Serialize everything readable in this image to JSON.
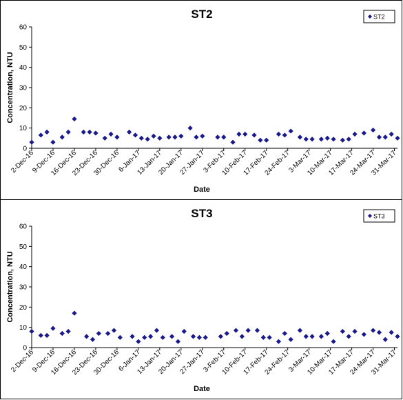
{
  "chart_data": [
    {
      "type": "scatter",
      "title": "ST2",
      "xlabel": "Date",
      "ylabel": "Concentration, NTU",
      "ylim": [
        0,
        60
      ],
      "yticks": [
        0,
        10,
        20,
        30,
        40,
        50,
        60
      ],
      "xlim": [
        "2016-12-02",
        "2017-04-01"
      ],
      "xtick_labels": [
        "2-Dec-16",
        "9-Dec-16",
        "16-Dec-16",
        "23-Dec-16",
        "30-Dec-16",
        "6-Jan-17",
        "13-Jan-17",
        "20-Jan-17",
        "27-Jan-17",
        "3-Feb-17",
        "10-Feb-17",
        "17-Feb-17",
        "24-Feb-17",
        "3-Mar-17",
        "10-Mar-17",
        "17-Mar-17",
        "24-Mar-17",
        "31-Mar-17"
      ],
      "grid": false,
      "legend_position": "top-right",
      "marker_color": "#1a1a8c",
      "series": [
        {
          "name": "ST2",
          "points": [
            [
              "2016-12-02",
              3.0
            ],
            [
              "2016-12-05",
              6.5
            ],
            [
              "2016-12-07",
              8.0
            ],
            [
              "2016-12-09",
              3.0
            ],
            [
              "2016-12-12",
              5.5
            ],
            [
              "2016-12-14",
              8.0
            ],
            [
              "2016-12-16",
              14.5
            ],
            [
              "2016-12-19",
              8.0
            ],
            [
              "2016-12-21",
              8.0
            ],
            [
              "2016-12-23",
              7.5
            ],
            [
              "2016-12-26",
              5.0
            ],
            [
              "2016-12-28",
              7.0
            ],
            [
              "2016-12-30",
              5.5
            ],
            [
              "2017-01-03",
              8.0
            ],
            [
              "2017-01-05",
              6.5
            ],
            [
              "2017-01-07",
              5.0
            ],
            [
              "2017-01-09",
              4.5
            ],
            [
              "2017-01-11",
              6.0
            ],
            [
              "2017-01-13",
              5.0
            ],
            [
              "2017-01-16",
              5.5
            ],
            [
              "2017-01-18",
              5.5
            ],
            [
              "2017-01-20",
              6.0
            ],
            [
              "2017-01-23",
              10.0
            ],
            [
              "2017-01-25",
              5.5
            ],
            [
              "2017-01-27",
              6.0
            ],
            [
              "2017-02-01",
              5.5
            ],
            [
              "2017-02-03",
              5.5
            ],
            [
              "2017-02-06",
              3.0
            ],
            [
              "2017-02-08",
              7.0
            ],
            [
              "2017-02-10",
              7.0
            ],
            [
              "2017-02-13",
              6.5
            ],
            [
              "2017-02-15",
              4.0
            ],
            [
              "2017-02-17",
              4.0
            ],
            [
              "2017-02-21",
              7.0
            ],
            [
              "2017-02-23",
              6.5
            ],
            [
              "2017-02-25",
              8.5
            ],
            [
              "2017-02-28",
              5.5
            ],
            [
              "2017-03-02",
              4.5
            ],
            [
              "2017-03-04",
              4.5
            ],
            [
              "2017-03-07",
              4.5
            ],
            [
              "2017-03-09",
              5.0
            ],
            [
              "2017-03-11",
              4.5
            ],
            [
              "2017-03-14",
              4.0
            ],
            [
              "2017-03-16",
              4.5
            ],
            [
              "2017-03-18",
              7.0
            ],
            [
              "2017-03-21",
              7.5
            ],
            [
              "2017-03-24",
              9.0
            ],
            [
              "2017-03-26",
              5.5
            ],
            [
              "2017-03-28",
              5.5
            ],
            [
              "2017-03-30",
              7.0
            ],
            [
              "2017-04-01",
              5.0
            ]
          ]
        }
      ]
    },
    {
      "type": "scatter",
      "title": "ST3",
      "xlabel": "Date",
      "ylabel": "Concentration, NTU",
      "ylim": [
        0,
        60
      ],
      "yticks": [
        0,
        10,
        20,
        30,
        40,
        50,
        60
      ],
      "xlim": [
        "2016-12-02",
        "2017-04-01"
      ],
      "xtick_labels": [
        "2-Dec-16",
        "9-Dec-16",
        "16-Dec-16",
        "23-Dec-16",
        "30-Dec-16",
        "6-Jan-17",
        "13-Jan-17",
        "20-Jan-17",
        "27-Jan-17",
        "3-Feb-17",
        "10-Feb-17",
        "17-Feb-17",
        "24-Feb-17",
        "3-Mar-17",
        "10-Mar-17",
        "17-Mar-17",
        "24-Mar-17",
        "31-Mar-17"
      ],
      "grid": false,
      "legend_position": "top-right",
      "marker_color": "#1a1a8c",
      "series": [
        {
          "name": "ST3",
          "points": [
            [
              "2016-12-02",
              8.0
            ],
            [
              "2016-12-05",
              6.0
            ],
            [
              "2016-12-07",
              6.0
            ],
            [
              "2016-12-09",
              9.5
            ],
            [
              "2016-12-12",
              7.0
            ],
            [
              "2016-12-14",
              8.0
            ],
            [
              "2016-12-16",
              17.0
            ],
            [
              "2016-12-20",
              5.5
            ],
            [
              "2016-12-22",
              4.0
            ],
            [
              "2016-12-24",
              7.0
            ],
            [
              "2016-12-27",
              7.0
            ],
            [
              "2016-12-29",
              8.5
            ],
            [
              "2016-12-31",
              5.0
            ],
            [
              "2017-01-04",
              5.5
            ],
            [
              "2017-01-06",
              3.0
            ],
            [
              "2017-01-08",
              5.0
            ],
            [
              "2017-01-10",
              5.5
            ],
            [
              "2017-01-12",
              8.5
            ],
            [
              "2017-01-14",
              5.0
            ],
            [
              "2017-01-17",
              5.5
            ],
            [
              "2017-01-19",
              3.0
            ],
            [
              "2017-01-21",
              8.0
            ],
            [
              "2017-01-24",
              5.5
            ],
            [
              "2017-01-26",
              5.0
            ],
            [
              "2017-01-28",
              5.0
            ],
            [
              "2017-02-02",
              5.5
            ],
            [
              "2017-02-04",
              7.0
            ],
            [
              "2017-02-07",
              8.5
            ],
            [
              "2017-02-09",
              5.5
            ],
            [
              "2017-02-11",
              8.5
            ],
            [
              "2017-02-14",
              8.5
            ],
            [
              "2017-02-16",
              5.0
            ],
            [
              "2017-02-18",
              5.0
            ],
            [
              "2017-02-21",
              3.0
            ],
            [
              "2017-02-23",
              7.0
            ],
            [
              "2017-02-25",
              4.0
            ],
            [
              "2017-02-28",
              8.5
            ],
            [
              "2017-03-02",
              5.5
            ],
            [
              "2017-03-04",
              5.5
            ],
            [
              "2017-03-07",
              5.5
            ],
            [
              "2017-03-09",
              7.0
            ],
            [
              "2017-03-11",
              3.0
            ],
            [
              "2017-03-14",
              8.0
            ],
            [
              "2017-03-16",
              5.5
            ],
            [
              "2017-03-18",
              8.0
            ],
            [
              "2017-03-21",
              6.5
            ],
            [
              "2017-03-24",
              8.5
            ],
            [
              "2017-03-26",
              7.5
            ],
            [
              "2017-03-28",
              4.0
            ],
            [
              "2017-03-30",
              7.5
            ],
            [
              "2017-04-01",
              5.5
            ]
          ]
        }
      ]
    }
  ]
}
